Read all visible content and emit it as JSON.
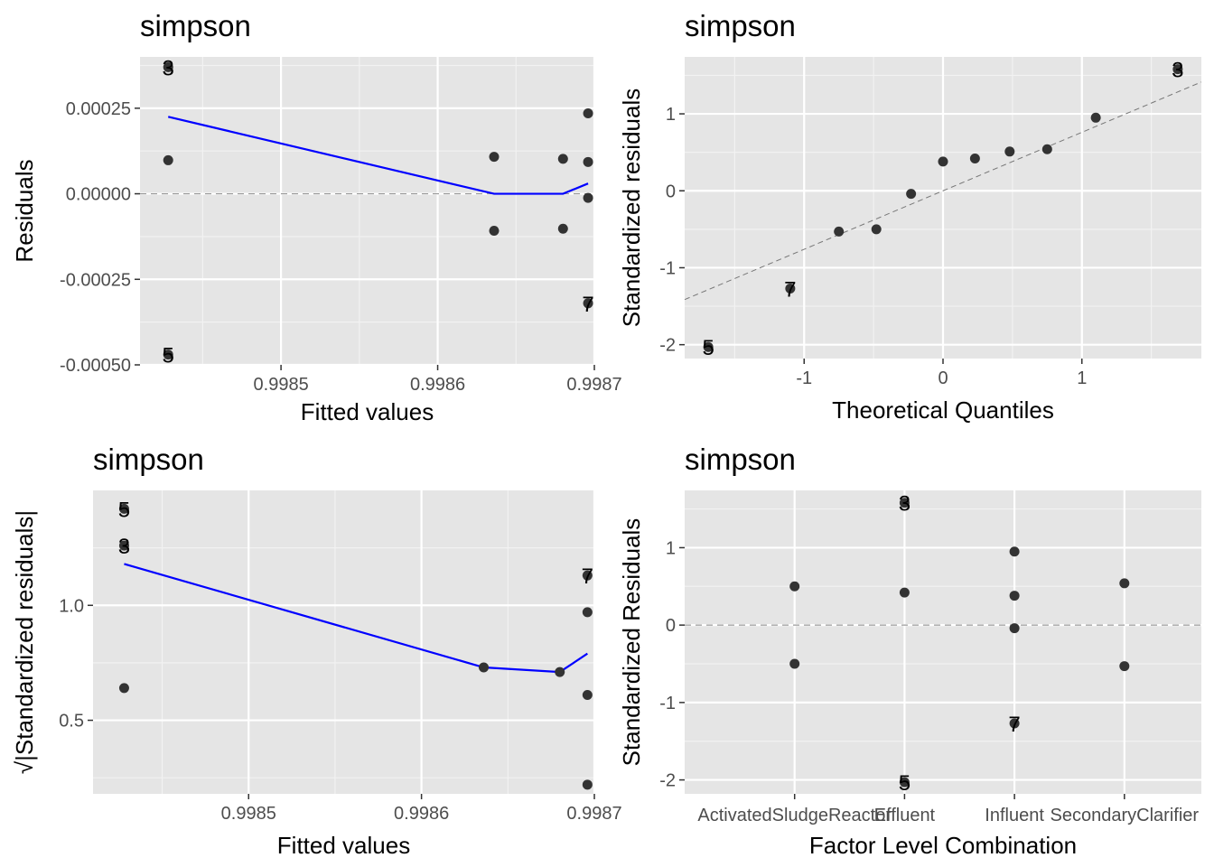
{
  "chart_data": [
    {
      "type": "scatter",
      "title": "simpson",
      "xlabel": "Fitted values",
      "ylabel": "Residuals",
      "xlim": [
        0.99841,
        0.9987
      ],
      "ylim": [
        -0.0005,
        0.0004
      ],
      "xticks": [
        0.9985,
        0.9986,
        0.9987
      ],
      "xtick_labels": [
        "0.9985",
        "0.9986",
        "0.9987"
      ],
      "yticks": [
        -0.0005,
        -0.00025,
        0.0,
        0.00025
      ],
      "ytick_labels": [
        "-0.00050",
        "-0.00025",
        "0.00000",
        "0.00025"
      ],
      "grid": true,
      "reference_line": {
        "type": "horizontal",
        "y": 0
      },
      "points": [
        {
          "x": 0.998428,
          "y": 0.00037,
          "label": "3"
        },
        {
          "x": 0.998428,
          "y": 9.8e-05
        },
        {
          "x": 0.998428,
          "y": -0.00047,
          "label": "5"
        },
        {
          "x": 0.998636,
          "y": 0.000108
        },
        {
          "x": 0.998636,
          "y": -0.000108
        },
        {
          "x": 0.99868,
          "y": 0.000102
        },
        {
          "x": 0.99868,
          "y": -0.000102
        },
        {
          "x": 0.998696,
          "y": 0.000235
        },
        {
          "x": 0.998696,
          "y": 9.3e-05
        },
        {
          "x": 0.998696,
          "y": -1.2e-05
        },
        {
          "x": 0.998696,
          "y": -0.00032,
          "label": "7"
        }
      ],
      "smooth_line": [
        {
          "x": 0.998428,
          "y": 0.000225
        },
        {
          "x": 0.998636,
          "y": 0.0
        },
        {
          "x": 0.99868,
          "y": 0.0
        },
        {
          "x": 0.998696,
          "y": 3e-05
        }
      ]
    },
    {
      "type": "scatter",
      "title": "simpson",
      "xlabel": "Theoretical Quantiles",
      "ylabel": "Standardized residuals",
      "xlim": [
        -1.86,
        1.86
      ],
      "ylim": [
        -2.18,
        1.74
      ],
      "xticks": [
        -1,
        0,
        1
      ],
      "xtick_labels": [
        "-1",
        "0",
        "1"
      ],
      "yticks": [
        -2,
        -1,
        0,
        1
      ],
      "ytick_labels": [
        "-2",
        "-1",
        "0",
        "1"
      ],
      "grid": true,
      "reference_line": {
        "type": "diagonal",
        "intercept": 0,
        "slope": 0.76
      },
      "points": [
        {
          "x": -1.69,
          "y": -2.03,
          "label": "5"
        },
        {
          "x": -1.1,
          "y": -1.27,
          "label": "7"
        },
        {
          "x": -0.75,
          "y": -0.53
        },
        {
          "x": -0.48,
          "y": -0.5
        },
        {
          "x": -0.23,
          "y": -0.04
        },
        {
          "x": 0.0,
          "y": 0.38
        },
        {
          "x": 0.23,
          "y": 0.42
        },
        {
          "x": 0.48,
          "y": 0.51
        },
        {
          "x": 0.75,
          "y": 0.54
        },
        {
          "x": 1.1,
          "y": 0.95
        },
        {
          "x": 1.69,
          "y": 1.58,
          "label": "3"
        }
      ]
    },
    {
      "type": "scatter",
      "title": "simpson",
      "xlabel": "Fitted values",
      "ylabel": "√|Standardized residuals|",
      "xlim": [
        0.99841,
        0.9987
      ],
      "ylim": [
        0.18,
        1.5
      ],
      "xticks": [
        0.9985,
        0.9986,
        0.9987
      ],
      "xtick_labels": [
        "0.9985",
        "0.9986",
        "0.9987"
      ],
      "yticks": [
        0.5,
        1.0
      ],
      "ytick_labels": [
        "0.5",
        "1.0"
      ],
      "grid": true,
      "points": [
        {
          "x": 0.998428,
          "y": 1.42,
          "label": "5"
        },
        {
          "x": 0.998428,
          "y": 1.26,
          "label": "3"
        },
        {
          "x": 0.998428,
          "y": 0.64
        },
        {
          "x": 0.998636,
          "y": 0.73
        },
        {
          "x": 0.99868,
          "y": 0.71
        },
        {
          "x": 0.998696,
          "y": 1.13,
          "label": "7"
        },
        {
          "x": 0.998696,
          "y": 0.97
        },
        {
          "x": 0.998696,
          "y": 0.61
        },
        {
          "x": 0.998696,
          "y": 0.22
        }
      ],
      "smooth_line": [
        {
          "x": 0.998428,
          "y": 1.18
        },
        {
          "x": 0.998636,
          "y": 0.73
        },
        {
          "x": 0.99868,
          "y": 0.71
        },
        {
          "x": 0.998696,
          "y": 0.79
        }
      ]
    },
    {
      "type": "scatter",
      "title": "simpson",
      "xlabel": "Factor Level Combination",
      "ylabel": "Standardized Residuals",
      "categories": [
        "ActivatedSludgeReactor",
        "Effluent",
        "Influent",
        "SecondaryClarifier"
      ],
      "xlim": [
        0.0,
        4.7
      ],
      "ylim": [
        -2.18,
        1.74
      ],
      "yticks": [
        -2,
        -1,
        0,
        1
      ],
      "ytick_labels": [
        "-2",
        "-1",
        "0",
        "1"
      ],
      "grid": true,
      "reference_line": {
        "type": "horizontal",
        "y": 0
      },
      "points": [
        {
          "x": 1,
          "y": 0.5
        },
        {
          "x": 1,
          "y": -0.5
        },
        {
          "x": 2,
          "y": 1.58,
          "label": "3"
        },
        {
          "x": 2,
          "y": 0.42
        },
        {
          "x": 2,
          "y": -2.03,
          "label": "5"
        },
        {
          "x": 3,
          "y": 0.95
        },
        {
          "x": 3,
          "y": 0.38
        },
        {
          "x": 3,
          "y": -0.04
        },
        {
          "x": 3,
          "y": -1.27,
          "label": "7"
        },
        {
          "x": 4,
          "y": 0.54
        },
        {
          "x": 4,
          "y": -0.53
        }
      ]
    }
  ],
  "colors": {
    "panel_background": "#e5e5e5",
    "grid_major": "#ffffff",
    "grid_minor": "#f2f2f2",
    "point": "#333333",
    "smooth": "#0000ff",
    "reference": "#999999"
  }
}
